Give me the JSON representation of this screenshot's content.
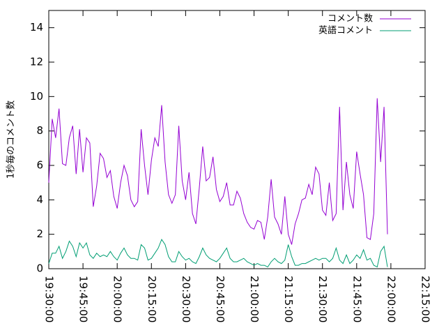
{
  "chart_data": {
    "type": "line",
    "y_label": "1秒毎のコメント数",
    "x": [
      "19:30:00",
      "19:31:30",
      "19:33:00",
      "19:34:30",
      "19:36:00",
      "19:37:30",
      "19:39:00",
      "19:40:30",
      "19:42:00",
      "19:43:30",
      "19:45:00",
      "19:46:30",
      "19:48:00",
      "19:49:30",
      "19:51:00",
      "19:52:30",
      "19:54:00",
      "19:55:30",
      "19:57:00",
      "19:58:30",
      "20:00:00",
      "20:01:30",
      "20:03:00",
      "20:04:30",
      "20:06:00",
      "20:07:30",
      "20:09:00",
      "20:10:30",
      "20:12:00",
      "20:13:30",
      "20:15:00",
      "20:16:30",
      "20:18:00",
      "20:19:30",
      "20:21:00",
      "20:22:30",
      "20:24:00",
      "20:25:30",
      "20:27:00",
      "20:28:30",
      "20:30:00",
      "20:31:30",
      "20:33:00",
      "20:34:30",
      "20:36:00",
      "20:37:30",
      "20:39:00",
      "20:40:30",
      "20:42:00",
      "20:43:30",
      "20:45:00",
      "20:46:30",
      "20:48:00",
      "20:49:30",
      "20:51:00",
      "20:52:30",
      "20:54:00",
      "20:55:30",
      "20:57:00",
      "20:58:30",
      "21:00:00",
      "21:01:30",
      "21:03:00",
      "21:04:30",
      "21:06:00",
      "21:07:30",
      "21:09:00",
      "21:10:30",
      "21:12:00",
      "21:13:30",
      "21:15:00",
      "21:16:30",
      "21:18:00",
      "21:19:30",
      "21:21:00",
      "21:22:30",
      "21:24:00",
      "21:25:30",
      "21:27:00",
      "21:28:30",
      "21:30:00",
      "21:31:30",
      "21:33:00",
      "21:34:30",
      "21:36:00",
      "21:37:30",
      "21:39:00",
      "21:40:30",
      "21:42:00",
      "21:43:30",
      "21:45:00",
      "21:46:30",
      "21:48:00",
      "21:49:30",
      "21:51:00",
      "21:52:30",
      "21:54:00",
      "21:55:30",
      "21:57:00",
      "21:58:30"
    ],
    "series": [
      {
        "name": "コメント数",
        "color": "#9400d3",
        "values": [
          5.0,
          8.7,
          7.6,
          9.3,
          6.1,
          6.0,
          7.6,
          8.3,
          5.5,
          8.1,
          5.6,
          7.6,
          7.3,
          3.6,
          4.8,
          6.7,
          6.4,
          5.3,
          5.7,
          4.2,
          3.5,
          5.0,
          6.0,
          5.4,
          4.0,
          3.6,
          3.9,
          8.1,
          6.0,
          4.3,
          6.3,
          7.6,
          7.1,
          9.5,
          6.2,
          4.3,
          3.8,
          4.3,
          8.3,
          5.1,
          4.0,
          5.6,
          3.2,
          2.6,
          4.7,
          7.1,
          5.1,
          5.3,
          6.5,
          4.6,
          3.9,
          4.2,
          5.0,
          3.7,
          3.7,
          4.5,
          4.1,
          3.2,
          2.7,
          2.4,
          2.3,
          2.8,
          2.7,
          1.7,
          3.0,
          5.2,
          3.0,
          2.6,
          2.0,
          4.2,
          2.0,
          1.4,
          2.6,
          3.2,
          4.0,
          4.1,
          4.9,
          4.3,
          5.9,
          5.5,
          3.4,
          3.1,
          5.0,
          2.8,
          3.2,
          9.4,
          3.4,
          6.2,
          4.3,
          3.5,
          6.8,
          5.5,
          4.3,
          1.8,
          1.7,
          3.2,
          9.9,
          6.2,
          9.4,
          2.0
        ]
      },
      {
        "name": "英語コメント",
        "color": "#009e73",
        "values": [
          0.3,
          0.9,
          0.9,
          1.3,
          0.6,
          1.0,
          1.6,
          1.3,
          0.7,
          1.5,
          1.2,
          1.5,
          0.8,
          0.6,
          0.9,
          0.7,
          0.8,
          0.7,
          1.0,
          0.7,
          0.5,
          0.9,
          1.2,
          0.8,
          0.6,
          0.6,
          0.5,
          1.4,
          1.2,
          0.5,
          0.6,
          0.9,
          1.2,
          1.7,
          1.4,
          0.7,
          0.4,
          0.4,
          1.0,
          0.7,
          0.5,
          0.6,
          0.4,
          0.3,
          0.7,
          1.2,
          0.8,
          0.6,
          0.5,
          0.4,
          0.6,
          0.9,
          1.2,
          0.6,
          0.4,
          0.4,
          0.5,
          0.6,
          0.4,
          0.3,
          0.2,
          0.3,
          0.2,
          0.2,
          0.1,
          0.4,
          0.6,
          0.4,
          0.3,
          0.5,
          1.4,
          0.7,
          0.2,
          0.2,
          0.3,
          0.3,
          0.4,
          0.5,
          0.6,
          0.5,
          0.6,
          0.6,
          0.4,
          0.6,
          1.2,
          0.5,
          0.3,
          0.8,
          0.3,
          0.5,
          0.8,
          0.6,
          1.1,
          0.5,
          0.6,
          0.2,
          0.1,
          1.0,
          1.3,
          0.1
        ]
      }
    ],
    "xlim": [
      "19:30:00",
      "22:15:00"
    ],
    "xticks": [
      "19:30:00",
      "19:45:00",
      "20:00:00",
      "20:15:00",
      "20:30:00",
      "20:45:00",
      "21:00:00",
      "21:15:00",
      "21:30:00",
      "21:45:00",
      "22:00:00",
      "22:15:00"
    ],
    "ylim": [
      0,
      15
    ],
    "yticks": [
      0,
      2,
      4,
      6,
      8,
      10,
      12,
      14
    ],
    "legend": "top-right"
  }
}
